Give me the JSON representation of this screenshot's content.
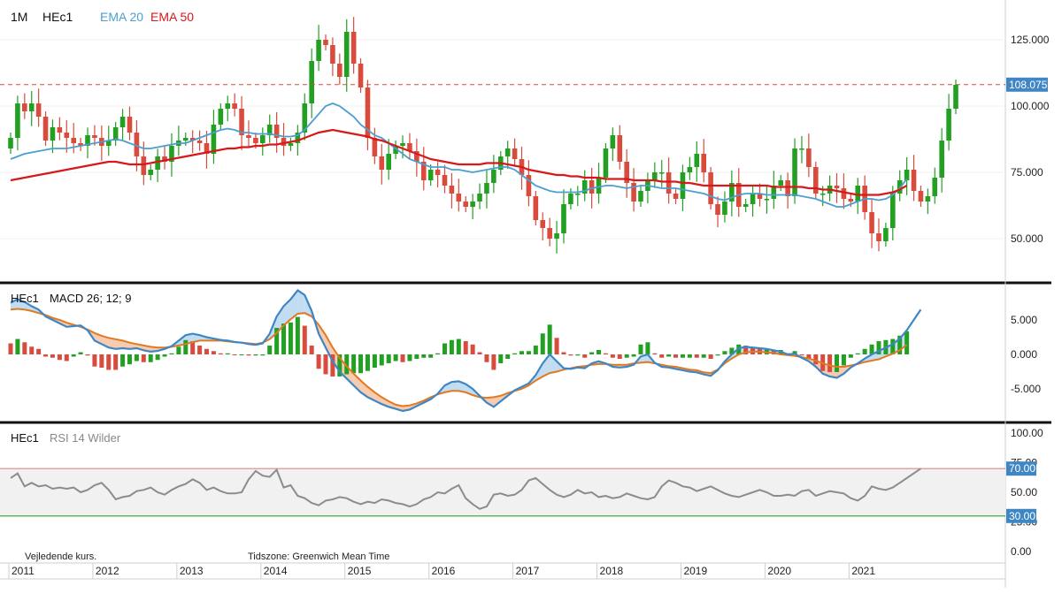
{
  "header": {
    "interval": "1M",
    "symbol": "HEc1",
    "ema20_label": "EMA 20",
    "ema50_label": "EMA 50"
  },
  "macd_panel": {
    "symbol": "HEc1",
    "label": "MACD 26; 12; 9"
  },
  "rsi_panel": {
    "symbol": "HEc1",
    "label": "RSI 14 Wilder"
  },
  "footer": {
    "note": "Vejledende kurs.",
    "timezone": "Tidszone: Greenwich Mean Time"
  },
  "colors": {
    "ema20": "#4a9fd0",
    "ema50": "#d7191c",
    "up": "#22a022",
    "down": "#d94b3c",
    "macd": "#3f86c4",
    "signal": "#e07a22",
    "rsi": "#8c8c8c",
    "last_price_tag": "#3f86c4"
  },
  "chart_data": [
    {
      "type": "candlestick",
      "title": "HEc1",
      "interval": "1M",
      "y_ticks": [
        50,
        75,
        100,
        125
      ],
      "y_tick_labels": [
        "50.000",
        "75.000",
        "100.000",
        "125.000"
      ],
      "ylim": [
        35,
        140
      ],
      "x_year_labels": [
        "2011",
        "2012",
        "2013",
        "2014",
        "2015",
        "2016",
        "2017",
        "2018",
        "2019",
        "2020",
        "2021"
      ],
      "last_price": 108.075,
      "last_price_label": "108.075",
      "series": [
        {
          "name": "EMA 20",
          "values": [
            80,
            81,
            82,
            82.5,
            83,
            83.5,
            84,
            84,
            84,
            84.5,
            85,
            85.5,
            86,
            86.5,
            87,
            87.5,
            87,
            86,
            85,
            84,
            84,
            84.5,
            85,
            85.5,
            86,
            86,
            87,
            88,
            89,
            90,
            91,
            91.5,
            91,
            90,
            90,
            89.5,
            89.5,
            89.5,
            89,
            88.5,
            88.5,
            89,
            91,
            94,
            97,
            100,
            101,
            100,
            98,
            96,
            93,
            91,
            89,
            88,
            86,
            84,
            82,
            80,
            79,
            78,
            77,
            77,
            77,
            76,
            76,
            75.5,
            75,
            75.5,
            76,
            76.5,
            77,
            77,
            76,
            74,
            72,
            70,
            69,
            68,
            67.5,
            67.5,
            67.5,
            67.5,
            68,
            69,
            69.5,
            70,
            70,
            69.5,
            69,
            69.5,
            70,
            70,
            69.5,
            69,
            69,
            69,
            68.5,
            68,
            67.5,
            67,
            66,
            65,
            64.5,
            65.5,
            66.5,
            67,
            67,
            67,
            66.5,
            66.5,
            66.5,
            66.5,
            66.5,
            66,
            65.5,
            65,
            64,
            63,
            62,
            62,
            63,
            64,
            65,
            65,
            64.5,
            65,
            66.5,
            69,
            72.5
          ]
        },
        {
          "name": "EMA 50",
          "values": [
            72,
            72.5,
            73,
            73.5,
            74,
            74.5,
            75,
            75.5,
            76,
            76.5,
            77,
            77.5,
            78,
            78.5,
            79,
            79,
            78.5,
            78,
            78,
            78,
            78.5,
            79,
            79.5,
            80,
            80.5,
            81,
            81.5,
            82,
            82.5,
            83,
            83.5,
            84,
            84,
            84.5,
            84.5,
            85,
            85,
            85.5,
            85.5,
            86,
            86.5,
            87,
            88,
            89,
            90,
            90.5,
            91,
            90.5,
            90,
            89.5,
            89,
            88.5,
            87.5,
            87,
            86,
            85,
            84,
            83,
            82,
            81,
            80,
            79.5,
            79,
            78.5,
            78,
            78,
            78,
            78,
            78.5,
            78.5,
            78.5,
            78,
            77.5,
            77,
            76,
            75.5,
            75,
            74.5,
            74,
            74,
            73.5,
            73.5,
            73,
            73,
            73,
            72.5,
            72.5,
            72.5,
            72.5,
            72,
            72,
            72,
            72,
            71.5,
            71.5,
            71.5,
            71,
            71,
            70.5,
            70,
            70,
            70,
            70,
            70,
            70,
            70,
            70,
            70,
            70,
            69.5,
            69.5,
            69.5,
            69.5,
            69.5,
            69,
            69,
            68.5,
            68.5,
            68,
            67.5,
            67,
            66.5,
            66.5,
            66.5,
            66.5,
            67,
            67.5,
            68.5,
            70
          ]
        }
      ],
      "ohlc_close": [
        88,
        101,
        98,
        101,
        96,
        87,
        92,
        90,
        88,
        86,
        85,
        89,
        88,
        85,
        87,
        92,
        96,
        90,
        81,
        74,
        76,
        81,
        79,
        85,
        87,
        88,
        87,
        86,
        82,
        93,
        99,
        101,
        99,
        89,
        88,
        86,
        89,
        93,
        88,
        85,
        86,
        90,
        101,
        117,
        125,
        123,
        116,
        111,
        128,
        116,
        107,
        88,
        81,
        76,
        82,
        85,
        86,
        83,
        79,
        72,
        76,
        74,
        70,
        67,
        64,
        62,
        64,
        67,
        71,
        76,
        81,
        84,
        80,
        74,
        66,
        57,
        54,
        50,
        52,
        63,
        67,
        67,
        72,
        67,
        73,
        84,
        89,
        79,
        71,
        64,
        68,
        72,
        75,
        75,
        67,
        65,
        75,
        77,
        82,
        75,
        63,
        59,
        64,
        71,
        62,
        63,
        67,
        65,
        65,
        70,
        72,
        66,
        84,
        84,
        77,
        67,
        67,
        70,
        69,
        65,
        64,
        70,
        60,
        52,
        49,
        54,
        67,
        72,
        76,
        68,
        64,
        66,
        73,
        87,
        99,
        108
      ]
    },
    {
      "type": "line",
      "title": "HEc1 MACD 26; 12; 9",
      "y_ticks": [
        -5000,
        0,
        5000
      ],
      "y_tick_labels": [
        "-5.000",
        "0.000",
        "5.000"
      ],
      "series": [
        {
          "name": "MACD",
          "values": [
            7.5,
            8,
            7.6,
            7,
            6.5,
            5.5,
            5,
            4.5,
            4,
            4.1,
            4.2,
            3.5,
            2,
            1.5,
            1,
            0.8,
            0.9,
            0.8,
            0.9,
            0.6,
            0.4,
            0.5,
            0.8,
            1.2,
            2,
            2.8,
            3,
            2.8,
            2.5,
            2.3,
            2.1,
            2,
            1.8,
            1.7,
            1.5,
            1.4,
            1.6,
            3,
            5.5,
            7,
            8,
            9.3,
            8.6,
            6.3,
            3,
            1,
            -1,
            -2.5,
            -3.5,
            -4.5,
            -5.5,
            -6.2,
            -6.7,
            -7.2,
            -7.6,
            -7.9,
            -8.2,
            -8,
            -7.5,
            -7,
            -6.5,
            -5.7,
            -4.5,
            -4,
            -3.9,
            -4.3,
            -5,
            -6,
            -7,
            -7.6,
            -6.8,
            -6,
            -5.2,
            -4.7,
            -4.2,
            -3,
            -1.3,
            0,
            -1,
            -2,
            -2.1,
            -1.9,
            -2,
            -1.3,
            -1,
            -1.3,
            -1.8,
            -1.9,
            -1.8,
            -1.5,
            -0.3,
            0,
            -1.2,
            -1.8,
            -1.9,
            -2.1,
            -2.3,
            -2.5,
            -2.6,
            -2.9,
            -3.1,
            -2.3,
            -1,
            0,
            0.9,
            1.1,
            1,
            0.9,
            0.8,
            0.6,
            0.4,
            0,
            0.1,
            -0.5,
            -1,
            -1.8,
            -2.8,
            -3.2,
            -3.4,
            -2.8,
            -1.9,
            -1.3,
            -0.6,
            0,
            0.5,
            1,
            1.5,
            2.3,
            3.5,
            5,
            6.5
          ]
        },
        {
          "name": "Signal",
          "values": [
            6.5,
            6.6,
            6.5,
            6.3,
            6,
            5.7,
            5.3,
            5,
            4.6,
            4.3,
            4,
            3.6,
            3.1,
            2.7,
            2.4,
            2.2,
            2,
            1.7,
            1.5,
            1.3,
            1.1,
            1,
            1,
            1.1,
            1.3,
            1.5,
            1.8,
            2,
            2,
            2,
            2,
            1.9,
            1.8,
            1.7,
            1.6,
            1.5,
            1.7,
            2.2,
            3.1,
            4.2,
            5.1,
            5.9,
            6,
            5.5,
            4.3,
            2.8,
            1,
            -0.5,
            -1.7,
            -2.8,
            -3.8,
            -4.7,
            -5.5,
            -6.2,
            -6.8,
            -7.3,
            -7.5,
            -7.4,
            -7.1,
            -6.7,
            -6.2,
            -5.8,
            -5.5,
            -5.3,
            -5.3,
            -5.5,
            -5.9,
            -6.2,
            -6.3,
            -6.2,
            -6,
            -5.6,
            -5.3,
            -5,
            -4.5,
            -3.8,
            -3.2,
            -2.7,
            -2.5,
            -2.2,
            -2,
            -1.8,
            -1.7,
            -1.5,
            -1.4,
            -1.4,
            -1.5,
            -1.5,
            -1.5,
            -1.3,
            -1.2,
            -1.1,
            -1.3,
            -1.5,
            -1.7,
            -1.8,
            -2,
            -2.2,
            -2.3,
            -2.6,
            -2.7,
            -2.2,
            -1.3,
            -0.6,
            0,
            0.3,
            0.4,
            0.4,
            0.3,
            0.2,
            0,
            -0.1,
            -0.2,
            -0.4,
            -0.6,
            -0.9,
            -1.3,
            -1.6,
            -1.8,
            -1.8,
            -1.6,
            -1.4,
            -1.1,
            -0.9,
            -0.7,
            -0.3,
            0.1,
            0.6,
            1.4
          ]
        }
      ]
    },
    {
      "type": "line",
      "title": "HEc1 RSI 14 Wilder",
      "y_ticks": [
        0,
        25,
        50,
        75,
        100
      ],
      "y_tick_labels": [
        "0.00",
        "25.00",
        "50.00",
        "75.00",
        "100.00"
      ],
      "ylim": [
        0,
        100
      ],
      "bands": [
        30,
        70
      ],
      "band_labels": [
        "30.00",
        "70.00"
      ],
      "series": [
        {
          "name": "RSI",
          "values": [
            62,
            66,
            55,
            58,
            55,
            56,
            53,
            54,
            53,
            54,
            50,
            52,
            56,
            58,
            52,
            44,
            46,
            47,
            51,
            52,
            54,
            50,
            48,
            52,
            55,
            57,
            61,
            58,
            52,
            54,
            51,
            49,
            49,
            50,
            61,
            68,
            64,
            63,
            69,
            54,
            56,
            47,
            45,
            41,
            39,
            43,
            44,
            46,
            45,
            42,
            40,
            42,
            41,
            44,
            43,
            41,
            40,
            38,
            40,
            44,
            46,
            50,
            49,
            53,
            56,
            45,
            40,
            36,
            38,
            48,
            49,
            47,
            48,
            52,
            60,
            62,
            57,
            52,
            48,
            46,
            48,
            52,
            49,
            50,
            46,
            47,
            45,
            46,
            49,
            47,
            45,
            44,
            46,
            55,
            60,
            58,
            55,
            54,
            51,
            53,
            55,
            52,
            49,
            47,
            46,
            48,
            50,
            52,
            50,
            47,
            47,
            48,
            47,
            51,
            52,
            47,
            49,
            51,
            50,
            49,
            45,
            43,
            47,
            55,
            53,
            52,
            54,
            58,
            62,
            66,
            70
          ]
        }
      ]
    }
  ]
}
